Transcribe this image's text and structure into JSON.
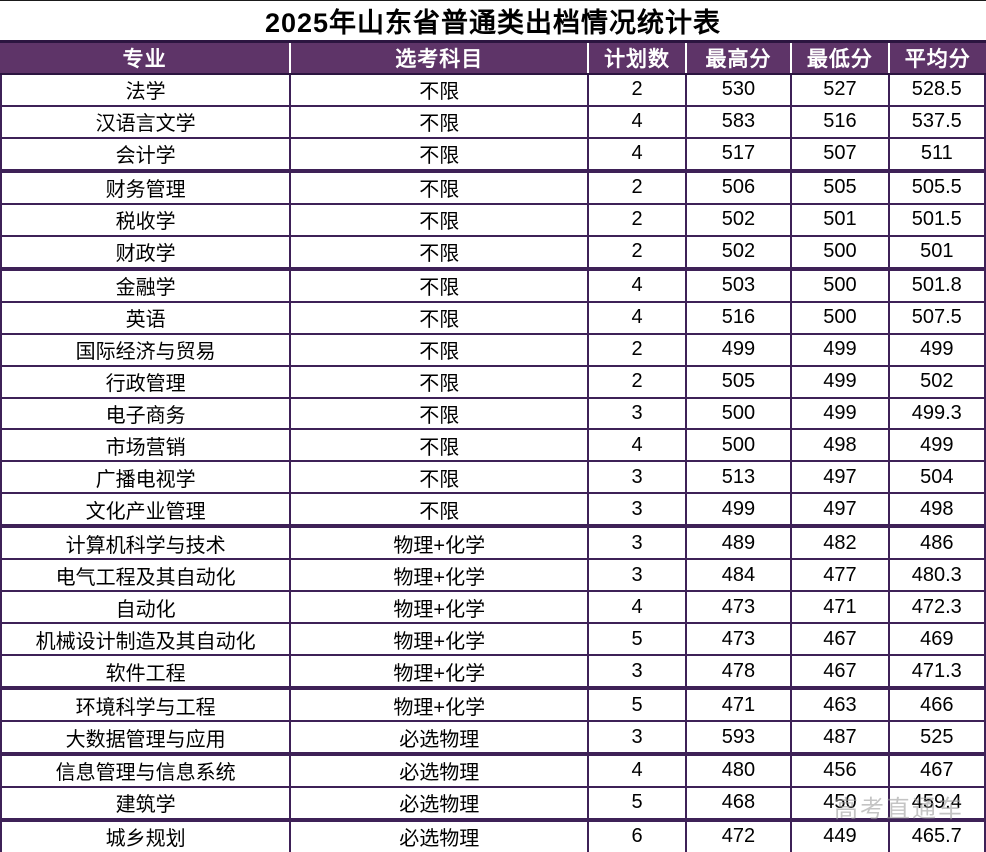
{
  "title": "2025年山东省普通类出档情况统计表",
  "watermark": "高考直通车",
  "colors": {
    "page_bg": "#FFFFFF",
    "header_bg": "#5E3468",
    "header_text": "#FFFFFF",
    "header_border": "#2B1540",
    "grid_border": "#3E2157",
    "body_text": "#000000",
    "watermark_text": "#9E9E9E"
  },
  "chart_data": {
    "type": "table",
    "title": "2025年山东省普通类出档情况统计表",
    "columns": [
      "专业",
      "选考科目",
      "计划数",
      "最高分",
      "最低分",
      "平均分"
    ],
    "thick_top_rows": [
      3,
      6,
      14,
      19,
      21,
      23
    ],
    "rows": [
      [
        "法学",
        "不限",
        "2",
        "530",
        "527",
        "528.5"
      ],
      [
        "汉语言文学",
        "不限",
        "4",
        "583",
        "516",
        "537.5"
      ],
      [
        "会计学",
        "不限",
        "4",
        "517",
        "507",
        "511"
      ],
      [
        "财务管理",
        "不限",
        "2",
        "506",
        "505",
        "505.5"
      ],
      [
        "税收学",
        "不限",
        "2",
        "502",
        "501",
        "501.5"
      ],
      [
        "财政学",
        "不限",
        "2",
        "502",
        "500",
        "501"
      ],
      [
        "金融学",
        "不限",
        "4",
        "503",
        "500",
        "501.8"
      ],
      [
        "英语",
        "不限",
        "4",
        "516",
        "500",
        "507.5"
      ],
      [
        "国际经济与贸易",
        "不限",
        "2",
        "499",
        "499",
        "499"
      ],
      [
        "行政管理",
        "不限",
        "2",
        "505",
        "499",
        "502"
      ],
      [
        "电子商务",
        "不限",
        "3",
        "500",
        "499",
        "499.3"
      ],
      [
        "市场营销",
        "不限",
        "4",
        "500",
        "498",
        "499"
      ],
      [
        "广播电视学",
        "不限",
        "3",
        "513",
        "497",
        "504"
      ],
      [
        "文化产业管理",
        "不限",
        "3",
        "499",
        "497",
        "498"
      ],
      [
        "计算机科学与技术",
        "物理+化学",
        "3",
        "489",
        "482",
        "486"
      ],
      [
        "电气工程及其自动化",
        "物理+化学",
        "3",
        "484",
        "477",
        "480.3"
      ],
      [
        "自动化",
        "物理+化学",
        "4",
        "473",
        "471",
        "472.3"
      ],
      [
        "机械设计制造及其自动化",
        "物理+化学",
        "5",
        "473",
        "467",
        "469"
      ],
      [
        "软件工程",
        "物理+化学",
        "3",
        "478",
        "467",
        "471.3"
      ],
      [
        "环境科学与工程",
        "物理+化学",
        "5",
        "471",
        "463",
        "466"
      ],
      [
        "大数据管理与应用",
        "必选物理",
        "3",
        "593",
        "487",
        "525"
      ],
      [
        "信息管理与信息系统",
        "必选物理",
        "4",
        "480",
        "456",
        "467"
      ],
      [
        "建筑学",
        "必选物理",
        "5",
        "468",
        "450",
        "459.4"
      ],
      [
        "城乡规划",
        "必选物理",
        "6",
        "472",
        "449",
        "465.7"
      ]
    ]
  }
}
